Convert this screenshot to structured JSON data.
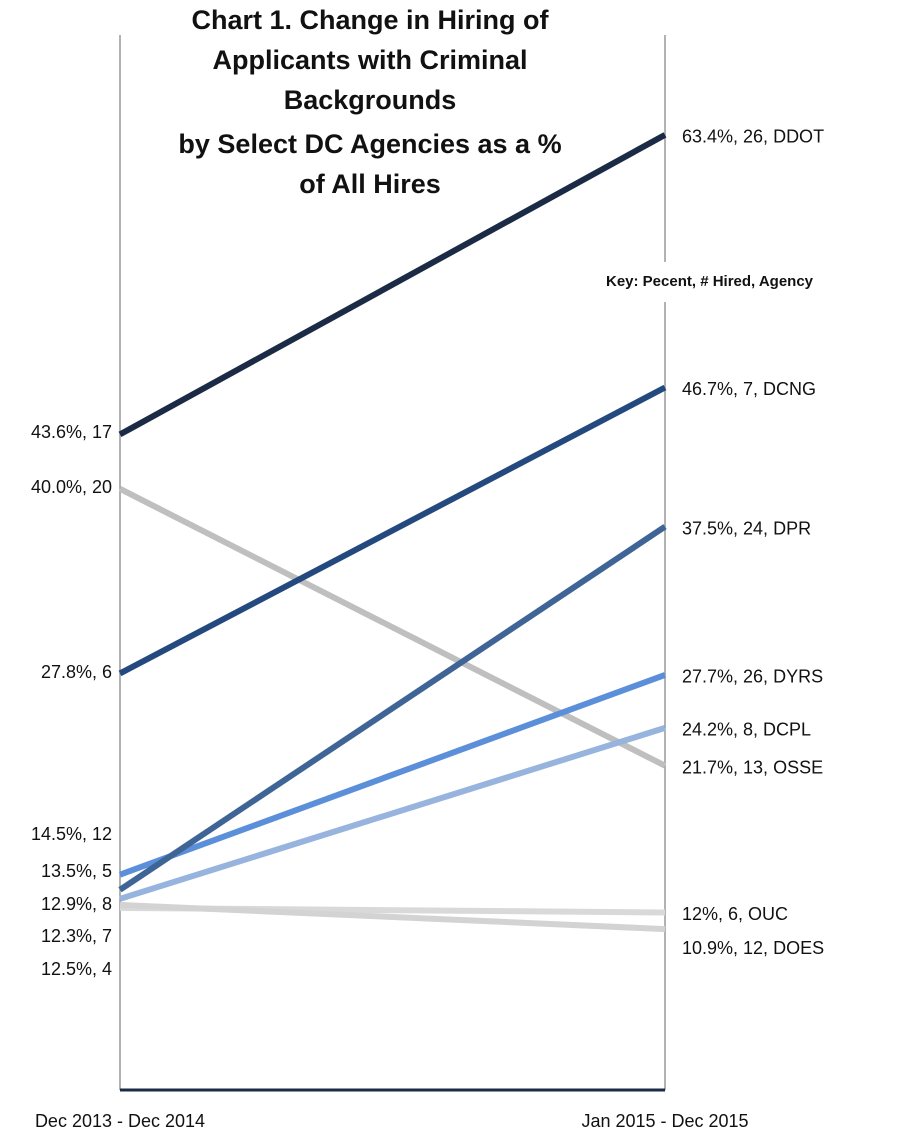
{
  "chart_data": {
    "type": "slope",
    "title": [
      "Chart 1. Change in Hiring of",
      "Applicants with Criminal",
      "Backgrounds",
      "by Select DC Agencies as a %",
      "of All Hires"
    ],
    "key": "Key: Pecent, # Hired, Agency",
    "categories": [
      "Dec 2013 - Dec 2014",
      "Jan 2015 - Dec 2015"
    ],
    "ylim": [
      0,
      70
    ],
    "series": [
      {
        "name": "DDOT",
        "color": "#1b2b45",
        "values": [
          43.6,
          63.4
        ],
        "value_labels": [
          "43.6%, 17",
          "63.4%, 26, DDOT"
        ]
      },
      {
        "name": "OSSE",
        "color": "#bfbfbf",
        "values": [
          40.0,
          21.7
        ],
        "value_labels": [
          "40.0%, 20",
          "21.7%, 13, OSSE"
        ]
      },
      {
        "name": "DCNG",
        "color": "#24497f",
        "values": [
          27.8,
          46.7
        ],
        "value_labels": [
          "27.8%, 6",
          "46.7%, 7, DCNG"
        ]
      },
      {
        "name": "DYRS",
        "color": "#5b8fd9",
        "values": [
          14.5,
          27.7
        ],
        "value_labels": [
          "14.5%, 12",
          "27.7%, 26, DYRS"
        ]
      },
      {
        "name": "DPR",
        "color": "#3f6496",
        "values": [
          13.5,
          37.5
        ],
        "value_labels": [
          "13.5%, 5",
          "37.5%, 24, DPR"
        ]
      },
      {
        "name": "DCPL",
        "color": "#97b4de",
        "values": [
          12.9,
          24.2
        ],
        "value_labels": [
          "12.9%, 8",
          "24.2%, 8, DCPL"
        ]
      },
      {
        "name": "OUC",
        "color": "#d9d9d9",
        "values": [
          12.3,
          12
        ],
        "value_labels": [
          "12.3%, 7",
          "12%, 6, OUC"
        ]
      },
      {
        "name": "DOES",
        "color": "#d3d3d3",
        "values": [
          12.5,
          10.9
        ],
        "value_labels": [
          "12.5%, 4",
          "10.9%, 12, DOES"
        ]
      }
    ]
  }
}
